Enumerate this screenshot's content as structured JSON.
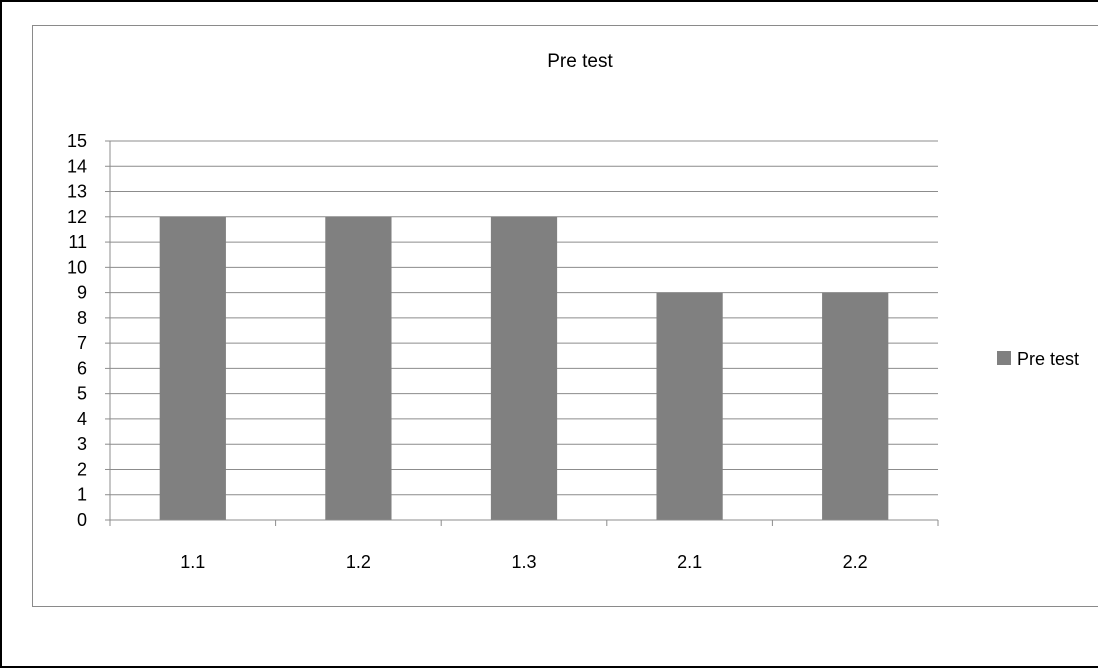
{
  "chart_data": {
    "type": "bar",
    "title": "Pre test",
    "xlabel": "",
    "ylabel": "",
    "categories": [
      "1.1",
      "1.2",
      "1.3",
      "2.1",
      "2.2"
    ],
    "series": [
      {
        "name": "Pre test",
        "values": [
          12,
          12,
          12,
          9,
          9
        ],
        "color": "#808080"
      }
    ],
    "ylim": [
      0,
      15
    ],
    "yticks": [
      0,
      1,
      2,
      3,
      4,
      5,
      6,
      7,
      8,
      9,
      10,
      11,
      12,
      13,
      14,
      15
    ],
    "grid": true,
    "legend_position": "right"
  }
}
